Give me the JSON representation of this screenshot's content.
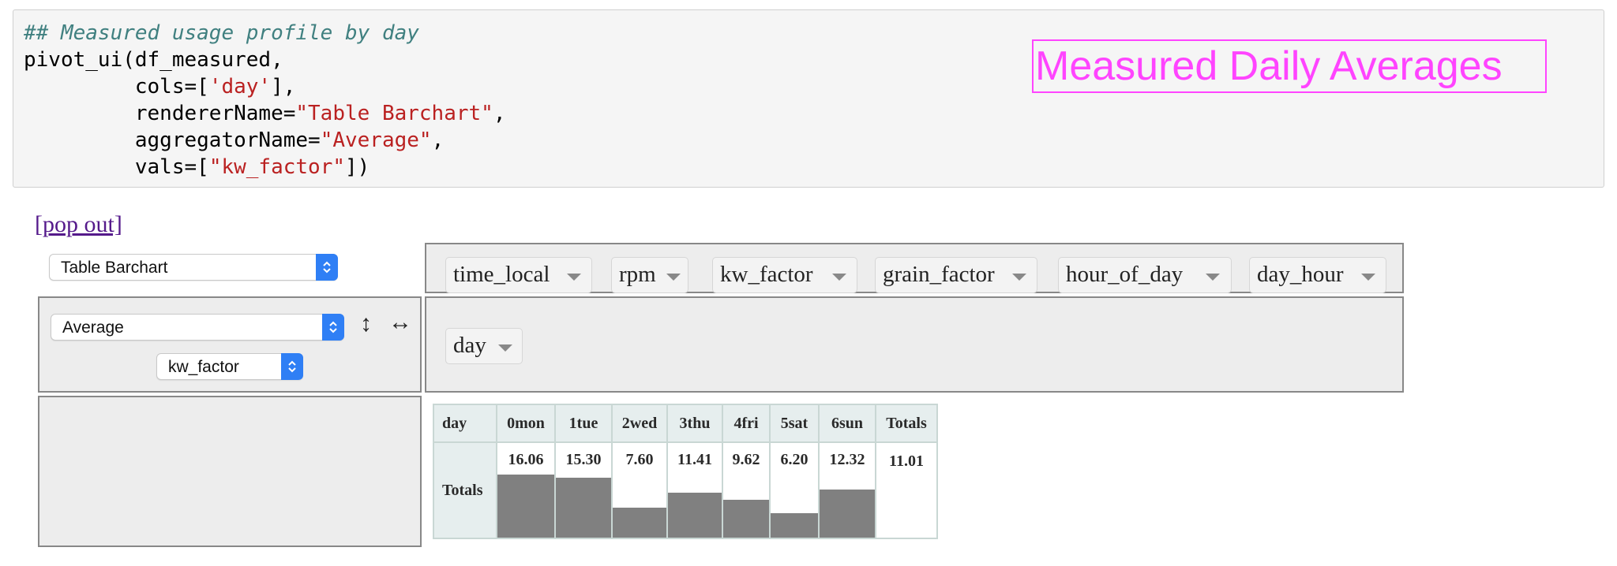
{
  "code": {
    "comment": "## Measured usage profile by day",
    "line2": "pivot_ui(df_measured,",
    "line3_pre": "         cols=[",
    "line3_str": "'day'",
    "line3_post": "],",
    "line4_pre": "         rendererName=",
    "line4_str": "\"Table Barchart\"",
    "line4_post": ",",
    "line5_pre": "         aggregatorName=",
    "line5_str": "\"Average\"",
    "line5_post": ",",
    "line6_pre": "         vals=[",
    "line6_str": "\"kw_factor\"",
    "line6_post": "])"
  },
  "annotation": "Measured Daily Averages",
  "pop_out": "[pop out]",
  "renderer_select": "Table Barchart",
  "aggregator_select": "Average",
  "value_select": "kw_factor",
  "unused_attrs": [
    "time_local",
    "rpm",
    "kw_factor",
    "grain_factor",
    "hour_of_day",
    "day_hour"
  ],
  "col_attrs": [
    "day"
  ],
  "table": {
    "corner": "day",
    "columns": [
      "0mon",
      "1tue",
      "2wed",
      "3thu",
      "4fri",
      "5sat",
      "6sun"
    ],
    "totals_col": "Totals",
    "row_label": "Totals",
    "values": [
      "16.06",
      "15.30",
      "7.60",
      "11.41",
      "9.62",
      "6.20",
      "12.32"
    ],
    "grand_total": "11.01"
  },
  "chart_data": {
    "type": "bar",
    "categories": [
      "0mon",
      "1tue",
      "2wed",
      "3thu",
      "4fri",
      "5sat",
      "6sun"
    ],
    "values": [
      16.06,
      15.3,
      7.6,
      11.41,
      9.62,
      6.2,
      12.32
    ],
    "ylabel": "",
    "xlabel": "day"
  }
}
